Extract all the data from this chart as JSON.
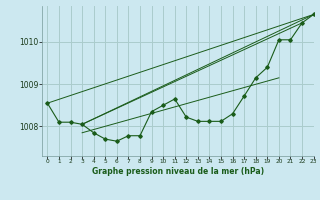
{
  "background_color": "#cce8f0",
  "grid_color": "#aacccc",
  "line_color": "#1a5c1a",
  "title": "Graphe pression niveau de la mer (hPa)",
  "xlim": [
    -0.5,
    23
  ],
  "ylim": [
    1007.3,
    1010.85
  ],
  "yticks": [
    1008,
    1009,
    1010
  ],
  "xticks": [
    0,
    1,
    2,
    3,
    4,
    5,
    6,
    7,
    8,
    9,
    10,
    11,
    12,
    13,
    14,
    15,
    16,
    17,
    18,
    19,
    20,
    21,
    22,
    23
  ],
  "series1_x": [
    0,
    1,
    2,
    3,
    4,
    5,
    6,
    7,
    8,
    9,
    10,
    11,
    12,
    13,
    14,
    15,
    16,
    17,
    18,
    19,
    20,
    21,
    22,
    23
  ],
  "series1_y": [
    1008.55,
    1008.1,
    1008.1,
    1008.05,
    1007.85,
    1007.7,
    1007.65,
    1007.78,
    1007.78,
    1008.35,
    1008.5,
    1008.65,
    1008.22,
    1008.12,
    1008.12,
    1008.12,
    1008.3,
    1008.72,
    1009.15,
    1009.4,
    1010.05,
    1010.05,
    1010.45,
    1010.65
  ],
  "series2_x": [
    0,
    23
  ],
  "series2_y": [
    1008.55,
    1010.65
  ],
  "series3_x": [
    3,
    23
  ],
  "series3_y": [
    1008.05,
    1010.65
  ],
  "series4_x": [
    3,
    22
  ],
  "series4_y": [
    1008.05,
    1010.45
  ],
  "series5_x": [
    3,
    20
  ],
  "series5_y": [
    1007.85,
    1009.15
  ]
}
